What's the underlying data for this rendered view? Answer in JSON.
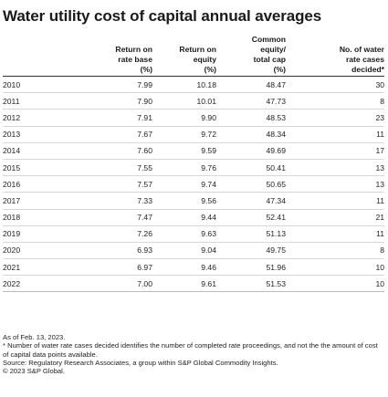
{
  "title": "Water utility cost of capital annual averages",
  "table": {
    "headers": [
      {
        "lines": [
          "",
          "Return on",
          "rate base",
          "(%)"
        ]
      },
      {
        "lines": [
          "",
          "Return on",
          "equity",
          "(%)"
        ]
      },
      {
        "lines": [
          "Common",
          "equity/",
          "total cap",
          "(%)"
        ]
      },
      {
        "lines": [
          "",
          "No. of water",
          "rate cases",
          "decided*"
        ]
      }
    ],
    "rows": [
      {
        "year": "2010",
        "rorb": "7.99",
        "roe": "10.18",
        "eq": "48.47",
        "cases": "30"
      },
      {
        "year": "2011",
        "rorb": "7.90",
        "roe": "10.01",
        "eq": "47.73",
        "cases": "8"
      },
      {
        "year": "2012",
        "rorb": "7.91",
        "roe": "9.90",
        "eq": "48.53",
        "cases": "23"
      },
      {
        "year": "2013",
        "rorb": "7.67",
        "roe": "9.72",
        "eq": "48.34",
        "cases": "11"
      },
      {
        "year": "2014",
        "rorb": "7.60",
        "roe": "9.59",
        "eq": "49.69",
        "cases": "17"
      },
      {
        "year": "2015",
        "rorb": "7.55",
        "roe": "9.76",
        "eq": "50.41",
        "cases": "13"
      },
      {
        "year": "2016",
        "rorb": "7.57",
        "roe": "9.74",
        "eq": "50.65",
        "cases": "13"
      },
      {
        "year": "2017",
        "rorb": "7.33",
        "roe": "9.56",
        "eq": "47.34",
        "cases": "11"
      },
      {
        "year": "2018",
        "rorb": "7.47",
        "roe": "9.44",
        "eq": "52.41",
        "cases": "21"
      },
      {
        "year": "2019",
        "rorb": "7.26",
        "roe": "9.63",
        "eq": "51.13",
        "cases": "11"
      },
      {
        "year": "2020",
        "rorb": "6.93",
        "roe": "9.04",
        "eq": "49.75",
        "cases": "8"
      },
      {
        "year": "2021",
        "rorb": "6.97",
        "roe": "9.46",
        "eq": "51.96",
        "cases": "10"
      },
      {
        "year": "2022",
        "rorb": "7.00",
        "roe": "9.61",
        "eq": "51.53",
        "cases": "10"
      }
    ]
  },
  "notes": [
    "As of Feb. 13, 2023.",
    "* Number of water rate cases decided identifies the number of completed rate proceedings, and not the the amount of cost of capital data points available.",
    "Source: Regulatory Research Associates, a group within S&P Global Commodity Insights.",
    "© 2023 S&P Global."
  ]
}
